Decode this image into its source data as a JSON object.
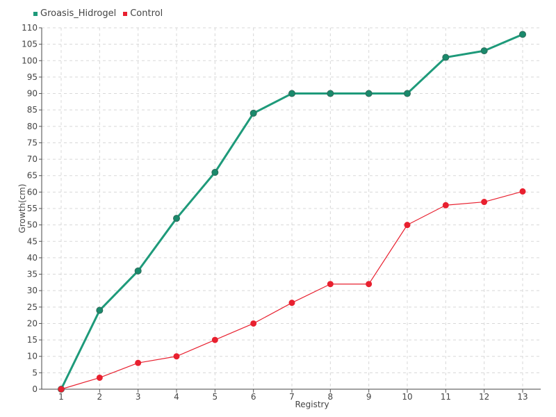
{
  "chart_data": {
    "type": "line",
    "title": "",
    "xlabel": "Registry",
    "ylabel": "Growth(cm)",
    "categories": [
      "1",
      "2",
      "3",
      "4",
      "5",
      "6",
      "7",
      "8",
      "9",
      "10",
      "11",
      "12",
      "13"
    ],
    "ylim": [
      0,
      110
    ],
    "ytick_step": 5,
    "grid": true,
    "legend_position": "top-left",
    "series": [
      {
        "name": "Groasis_Hidrogel",
        "color": "#1e9a7a",
        "values": [
          0,
          24,
          36,
          52,
          66,
          84,
          90,
          90,
          90,
          90,
          101,
          103,
          108
        ]
      },
      {
        "name": "Control",
        "color": "#e8202f",
        "values": [
          0,
          3.5,
          8,
          10,
          15,
          20,
          26.3,
          32,
          32,
          50,
          56,
          57,
          60.2
        ]
      }
    ]
  }
}
